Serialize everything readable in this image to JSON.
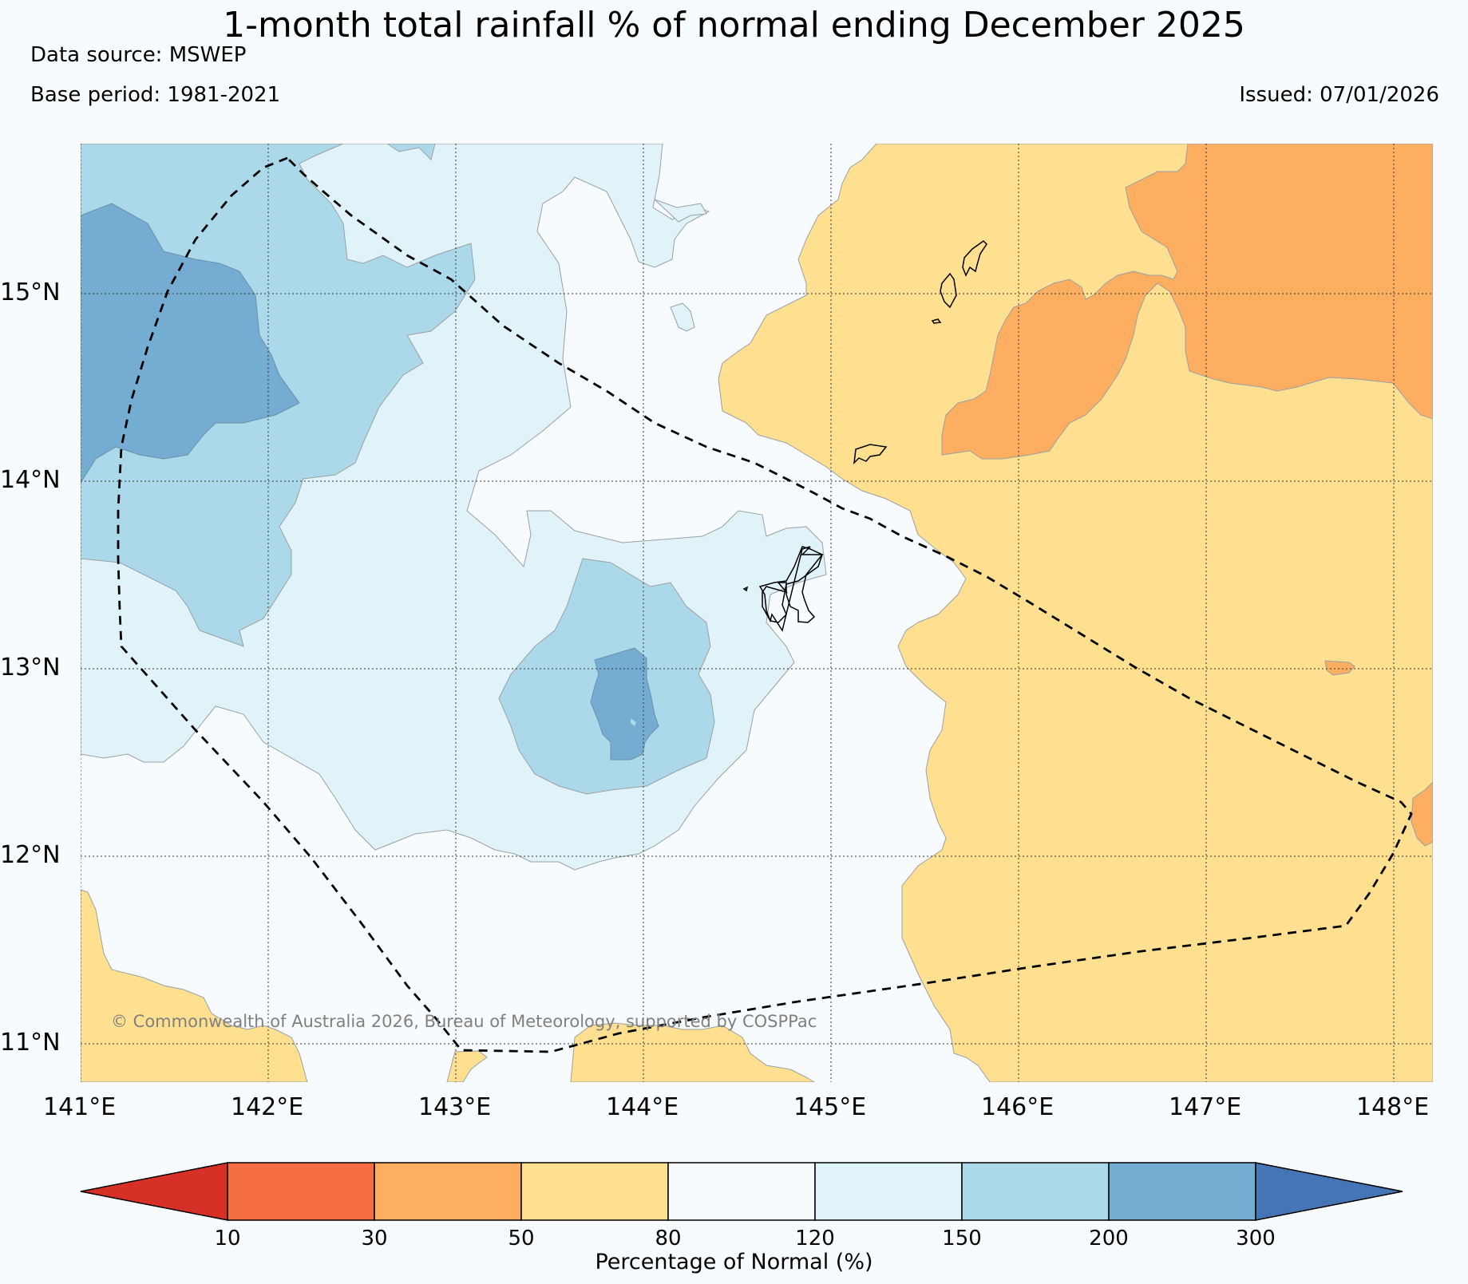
{
  "title": "1-month total rainfall % of normal ending December 2025",
  "data_source": "Data source: MSWEP",
  "base_period": "Base period: 1981-2021",
  "issued": "Issued: 07/01/2026",
  "credit": "© Commonwealth of Australia 2026, Bureau of Meteorology, supported by COSPPac",
  "latitude_labels": [
    "15°N",
    "14°N",
    "13°N",
    "12°N",
    "11°N"
  ],
  "longitude_labels": [
    "141°E",
    "142°E",
    "143°E",
    "144°E",
    "145°E",
    "146°E",
    "147°E",
    "148°E"
  ],
  "colorbar": {
    "title": "Percentage of Normal (%)",
    "ticks": [
      "10",
      "30",
      "50",
      "80",
      "120",
      "150",
      "200",
      "300"
    ],
    "bins": [
      {
        "range": "<10",
        "color": "#d73027"
      },
      {
        "range": "10-30",
        "color": "#f46d43"
      },
      {
        "range": "30-50",
        "color": "#fdae61"
      },
      {
        "range": "50-80",
        "color": "#fee090"
      },
      {
        "range": "80-120",
        "color": "#f8fbfd"
      },
      {
        "range": "120-150",
        "color": "#e0f3f8"
      },
      {
        "range": "150-200",
        "color": "#abd9e9"
      },
      {
        "range": "200-300",
        "color": "#74add1"
      },
      {
        "range": ">300",
        "color": "#4575b4"
      }
    ]
  }
}
